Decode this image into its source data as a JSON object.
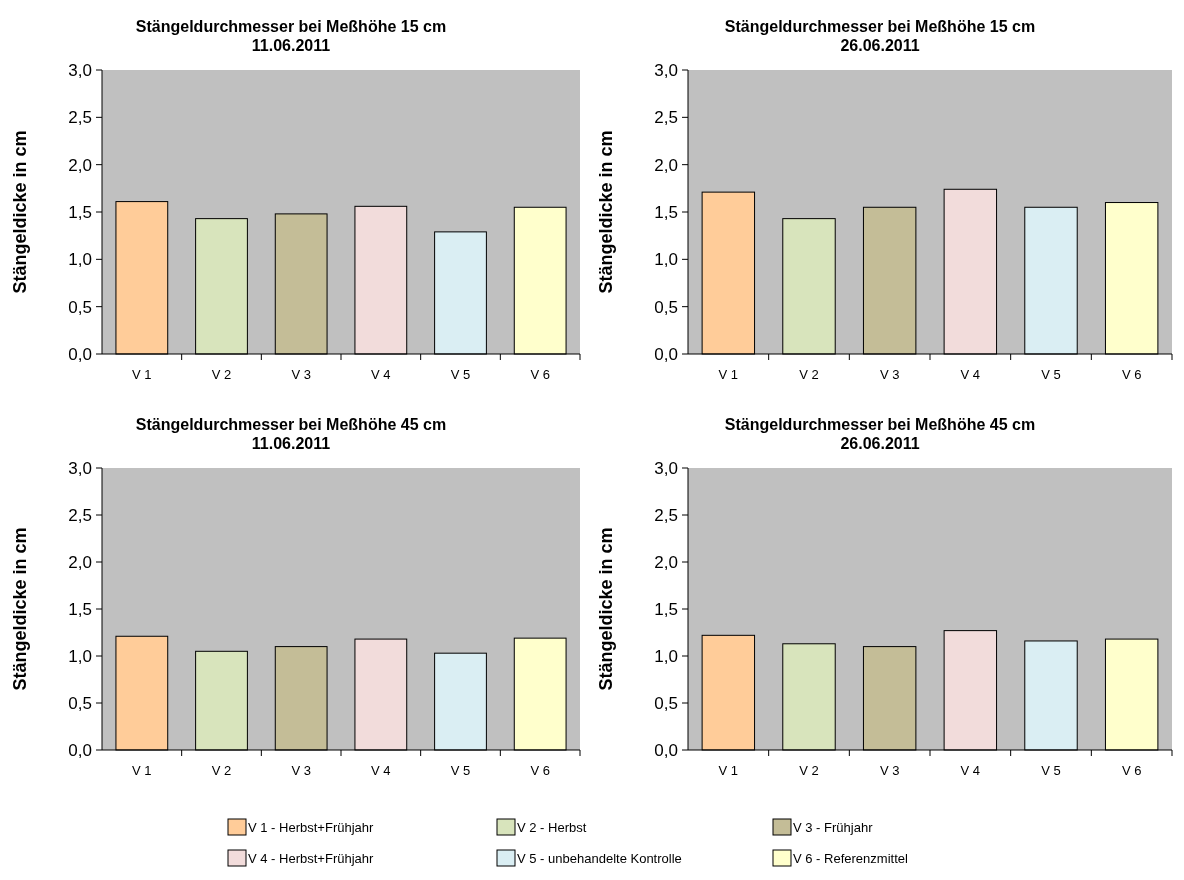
{
  "chart_data": [
    {
      "type": "bar",
      "title": "Stängeldurchmesser bei Meßhöhe 15 cm",
      "subtitle": "11.06.2011",
      "ylabel": "Stängeldicke in cm",
      "categories": [
        "V 1",
        "V 2",
        "V 3",
        "V 4",
        "V 5",
        "V 6"
      ],
      "values": [
        1.61,
        1.43,
        1.48,
        1.56,
        1.29,
        1.55
      ],
      "colors": [
        "#ffcc99",
        "#d8e4bc",
        "#c4bd97",
        "#f2dcdb",
        "#daeef3",
        "#ffffcc"
      ],
      "ylim": [
        0,
        3
      ],
      "yticks": [
        {
          "value": 0,
          "label": "0,0"
        },
        {
          "value": 0.5,
          "label": "0,5"
        },
        {
          "value": 1,
          "label": "1,0"
        },
        {
          "value": 1.5,
          "label": "1,5"
        },
        {
          "value": 2,
          "label": "2,0"
        },
        {
          "value": 2.5,
          "label": "2,5"
        },
        {
          "value": 3,
          "label": "3,0"
        }
      ],
      "grid": false
    },
    {
      "type": "bar",
      "title": "Stängeldurchmesser bei Meßhöhe 15 cm",
      "subtitle": "26.06.2011",
      "ylabel": "Stängeldicke in cm",
      "categories": [
        "V 1",
        "V 2",
        "V 3",
        "V 4",
        "V 5",
        "V 6"
      ],
      "values": [
        1.71,
        1.43,
        1.55,
        1.74,
        1.55,
        1.6
      ],
      "colors": [
        "#ffcc99",
        "#d8e4bc",
        "#c4bd97",
        "#f2dcdb",
        "#daeef3",
        "#ffffcc"
      ],
      "ylim": [
        0,
        3
      ],
      "yticks": [
        {
          "value": 0,
          "label": "0,0"
        },
        {
          "value": 0.5,
          "label": "0,5"
        },
        {
          "value": 1,
          "label": "1,0"
        },
        {
          "value": 1.5,
          "label": "1,5"
        },
        {
          "value": 2,
          "label": "2,0"
        },
        {
          "value": 2.5,
          "label": "2,5"
        },
        {
          "value": 3,
          "label": "3,0"
        }
      ],
      "grid": false
    },
    {
      "type": "bar",
      "title": "Stängeldurchmesser bei Meßhöhe 45 cm",
      "subtitle": "11.06.2011",
      "ylabel": "Stängeldicke in cm",
      "categories": [
        "V 1",
        "V 2",
        "V 3",
        "V 4",
        "V 5",
        "V 6"
      ],
      "values": [
        1.21,
        1.05,
        1.1,
        1.18,
        1.03,
        1.19
      ],
      "colors": [
        "#ffcc99",
        "#d8e4bc",
        "#c4bd97",
        "#f2dcdb",
        "#daeef3",
        "#ffffcc"
      ],
      "ylim": [
        0,
        3
      ],
      "yticks": [
        {
          "value": 0,
          "label": "0,0"
        },
        {
          "value": 0.5,
          "label": "0,5"
        },
        {
          "value": 1,
          "label": "1,0"
        },
        {
          "value": 1.5,
          "label": "1,5"
        },
        {
          "value": 2,
          "label": "2,0"
        },
        {
          "value": 2.5,
          "label": "2,5"
        },
        {
          "value": 3,
          "label": "3,0"
        }
      ],
      "grid": false
    },
    {
      "type": "bar",
      "title": "Stängeldurchmesser bei Meßhöhe 45 cm",
      "subtitle": "26.06.2011",
      "ylabel": "Stängeldicke in cm",
      "categories": [
        "V 1",
        "V 2",
        "V 3",
        "V 4",
        "V 5",
        "V 6"
      ],
      "values": [
        1.22,
        1.13,
        1.1,
        1.27,
        1.16,
        1.18
      ],
      "colors": [
        "#ffcc99",
        "#d8e4bc",
        "#c4bd97",
        "#f2dcdb",
        "#daeef3",
        "#ffffcc"
      ],
      "ylim": [
        0,
        3
      ],
      "yticks": [
        {
          "value": 0,
          "label": "0,0"
        },
        {
          "value": 0.5,
          "label": "0,5"
        },
        {
          "value": 1,
          "label": "1,0"
        },
        {
          "value": 1.5,
          "label": "1,5"
        },
        {
          "value": 2,
          "label": "2,0"
        },
        {
          "value": 2.5,
          "label": "2,5"
        },
        {
          "value": 3,
          "label": "3,0"
        }
      ],
      "grid": false
    },
    {
      "type": "other",
      "categories": [
        "V 1 - Herbst+Frühjahr",
        "V 2 - Herbst",
        "V 3 - Frühjahr",
        "V 4 - Herbst+Frühjahr",
        "V 5 - unbehandelte Kontrolle",
        "V 6 - Referenzmittel"
      ],
      "colors": [
        "#ffcc99",
        "#d8e4bc",
        "#c4bd97",
        "#f2dcdb",
        "#daeef3",
        "#ffffcc"
      ]
    }
  ]
}
